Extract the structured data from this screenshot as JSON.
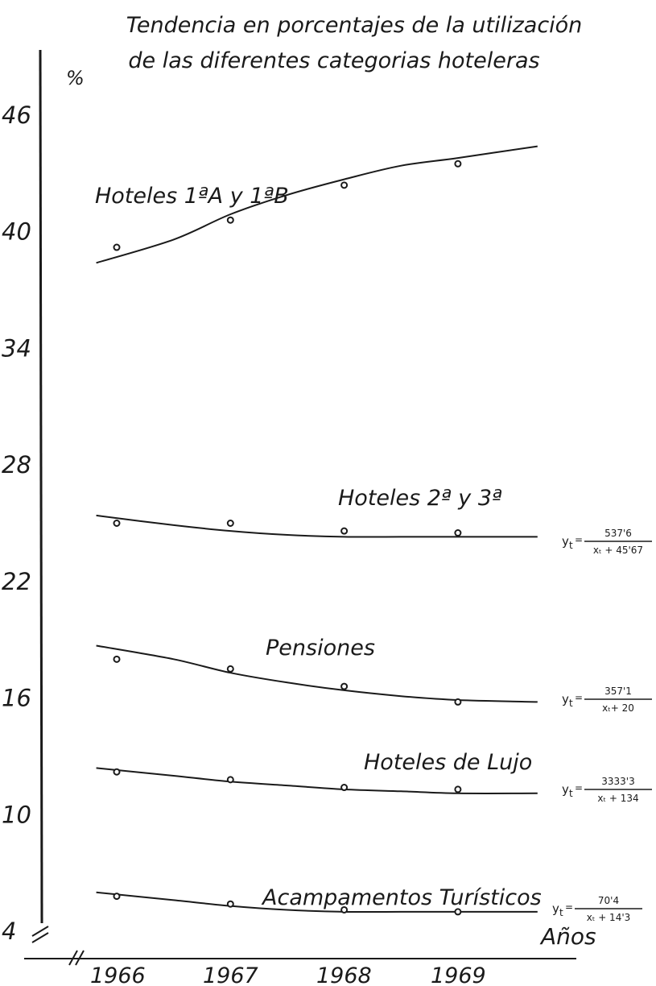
{
  "chart_data": {
    "type": "line",
    "title_lines": [
      "Tendencia  en porcentajes de la utilización",
      "de las diferentes categorias hoteleras"
    ],
    "ylabel": "%",
    "xlabel": "Años",
    "ylim": [
      4,
      50
    ],
    "y_ticks": [
      "46",
      "40",
      "34",
      "28",
      "22",
      "16",
      "10",
      "4"
    ],
    "x": [
      "1966",
      "1967",
      "1968",
      "1969"
    ],
    "series": [
      {
        "name": "Hoteles 1ªA y 1ªB",
        "points": [
          39.2,
          40.6,
          42.4,
          43.5
        ],
        "trend": [
          [
            0.82,
            38.4
          ],
          [
            1.5,
            39.6
          ],
          [
            2.0,
            40.9
          ],
          [
            2.5,
            41.9
          ],
          [
            3.0,
            42.7
          ],
          [
            3.5,
            43.4
          ],
          [
            4.0,
            43.8
          ],
          [
            4.7,
            44.4
          ]
        ],
        "equation": null
      },
      {
        "name": "Hoteles  2ª y 3ª",
        "points": [
          25.0,
          25.0,
          24.6,
          24.5
        ],
        "trend": [
          [
            0.82,
            25.4
          ],
          [
            1.5,
            24.9
          ],
          [
            2.0,
            24.6
          ],
          [
            2.5,
            24.4
          ],
          [
            3.0,
            24.3
          ],
          [
            3.5,
            24.3
          ],
          [
            4.0,
            24.3
          ],
          [
            4.7,
            24.3
          ]
        ],
        "equation": {
          "lhs": "y",
          "sub": "t",
          "num": "537'6",
          "den": "xₜ + 45'67"
        }
      },
      {
        "name": "Pensiones",
        "points": [
          18.0,
          17.5,
          16.6,
          15.8
        ],
        "trend": [
          [
            0.82,
            18.7
          ],
          [
            1.5,
            18.0
          ],
          [
            2.0,
            17.3
          ],
          [
            2.5,
            16.8
          ],
          [
            3.0,
            16.4
          ],
          [
            3.5,
            16.1
          ],
          [
            4.0,
            15.9
          ],
          [
            4.7,
            15.8
          ]
        ],
        "equation": {
          "lhs": "y",
          "sub": "t",
          "num": "357'1",
          "den": "xₜ+ 20"
        }
      },
      {
        "name": "Hoteles de Lujo",
        "points": [
          12.2,
          11.8,
          11.4,
          11.3
        ],
        "trend": [
          [
            0.82,
            12.4
          ],
          [
            1.5,
            12.0
          ],
          [
            2.0,
            11.7
          ],
          [
            2.5,
            11.5
          ],
          [
            3.0,
            11.3
          ],
          [
            3.5,
            11.2
          ],
          [
            4.0,
            11.1
          ],
          [
            4.7,
            11.1
          ]
        ],
        "equation": {
          "lhs": "y",
          "sub": "t",
          "num": "3333'3",
          "den": "xₜ + 134"
        }
      },
      {
        "name": "Acampamentos Turísticos",
        "points": [
          5.8,
          5.4,
          5.1,
          5.0
        ],
        "trend": [
          [
            0.82,
            6.0
          ],
          [
            1.5,
            5.6
          ],
          [
            2.0,
            5.3
          ],
          [
            2.5,
            5.1
          ],
          [
            3.0,
            5.0
          ],
          [
            3.5,
            5.0
          ],
          [
            4.0,
            5.0
          ],
          [
            4.7,
            5.0
          ]
        ],
        "equation": {
          "lhs": "y",
          "sub": "t",
          "num": "70'4",
          "den": "xₜ + 14'3"
        }
      }
    ],
    "grid": false,
    "legend": "none",
    "line_color": "#1a1a1a",
    "background_color": "#ffffff"
  }
}
